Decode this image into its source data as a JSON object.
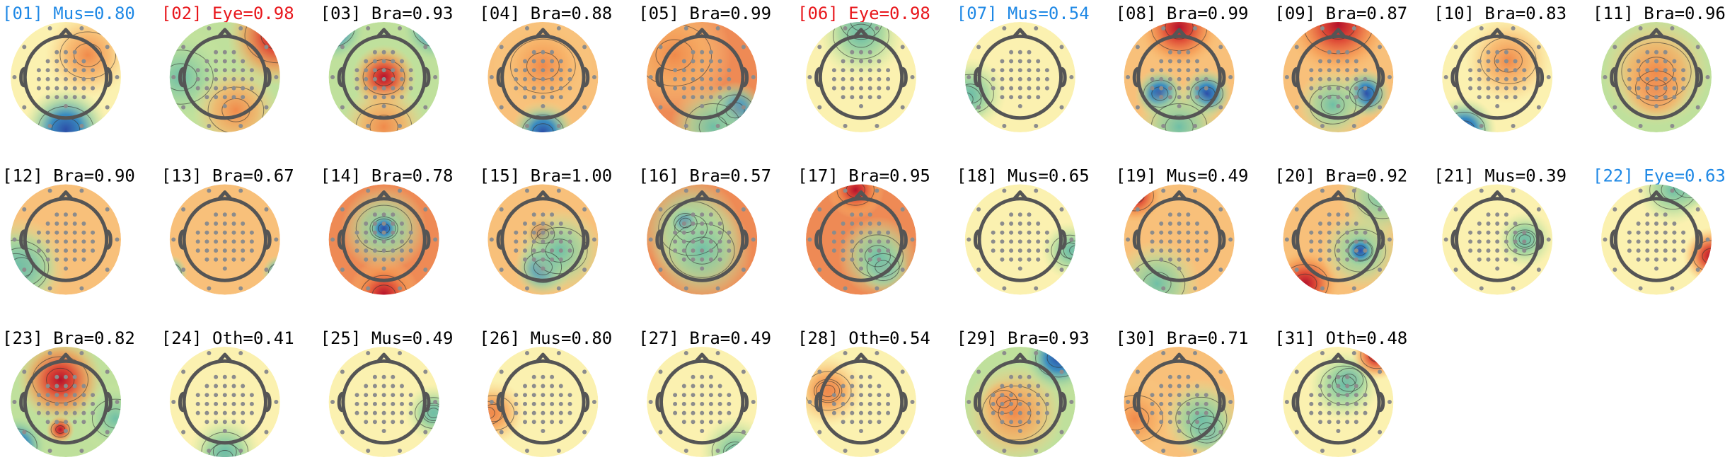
{
  "components": [
    {
      "title": "[01] Mus=0.80",
      "color": "#1e88e5"
    },
    {
      "title": "[02] Eye=0.98",
      "color": "#e8161b"
    },
    {
      "title": "[03] Bra=0.93",
      "color": "#000000"
    },
    {
      "title": "[04] Bra=0.88",
      "color": "#000000"
    },
    {
      "title": "[05] Bra=0.99",
      "color": "#000000"
    },
    {
      "title": "[06] Eye=0.98",
      "color": "#e8161b"
    },
    {
      "title": "[07] Mus=0.54",
      "color": "#1e88e5"
    },
    {
      "title": "[08] Bra=0.99",
      "color": "#000000"
    },
    {
      "title": "[09] Bra=0.87",
      "color": "#000000"
    },
    {
      "title": "[10] Bra=0.83",
      "color": "#000000"
    },
    {
      "title": "[11] Bra=0.96",
      "color": "#000000"
    },
    {
      "title": "[12] Bra=0.90",
      "color": "#000000"
    },
    {
      "title": "[13] Bra=0.67",
      "color": "#000000"
    },
    {
      "title": "[14] Bra=0.78",
      "color": "#000000"
    },
    {
      "title": "[15] Bra=1.00",
      "color": "#000000"
    },
    {
      "title": "[16] Bra=0.57",
      "color": "#000000"
    },
    {
      "title": "[17] Bra=0.95",
      "color": "#000000"
    },
    {
      "title": "[18] Mus=0.65",
      "color": "#000000"
    },
    {
      "title": "[19] Mus=0.49",
      "color": "#000000"
    },
    {
      "title": "[20] Bra=0.92",
      "color": "#000000"
    },
    {
      "title": "[21] Mus=0.39",
      "color": "#000000"
    },
    {
      "title": "[22] Eye=0.63",
      "color": "#1e88e5"
    },
    {
      "title": "[23] Bra=0.82",
      "color": "#000000"
    },
    {
      "title": "[24] Oth=0.41",
      "color": "#000000"
    },
    {
      "title": "[25] Mus=0.49",
      "color": "#000000"
    },
    {
      "title": "[26] Mus=0.80",
      "color": "#000000"
    },
    {
      "title": "[27] Bra=0.49",
      "color": "#000000"
    },
    {
      "title": "[28] Oth=0.54",
      "color": "#000000"
    },
    {
      "title": "[29] Bra=0.93",
      "color": "#000000"
    },
    {
      "title": "[30] Bra=0.71",
      "color": "#000000"
    },
    {
      "title": "[31] Oth=0.48",
      "color": "#000000"
    }
  ]
}
